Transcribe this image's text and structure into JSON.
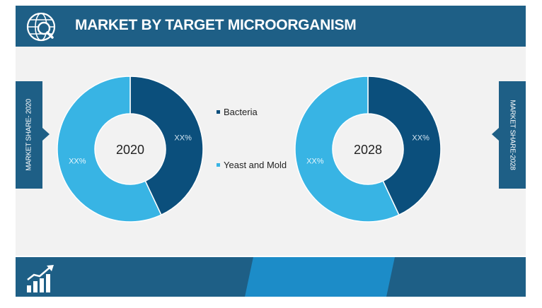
{
  "header": {
    "title": "MARKET BY  TARGET MICROORGANISM",
    "icon": "globe-search-icon"
  },
  "side_labels": {
    "left": "MARKET SHARE- 2020",
    "right": "MARKET SHARE-2028"
  },
  "footer": {
    "icon": "bar-chart-growth-icon"
  },
  "colors": {
    "bacteria": "#0b4f7c",
    "yeast": "#38b4e4",
    "header": "#1e5f86",
    "footer_accent": "#1c8cc8"
  },
  "chart_data": [
    {
      "type": "pie",
      "variant": "donut",
      "center_label": "2020",
      "categories": [
        "Bacteria",
        "Yeast and Mold"
      ],
      "values": [
        43,
        57
      ],
      "data_labels": [
        "XX%",
        "XX%"
      ]
    },
    {
      "type": "pie",
      "variant": "donut",
      "center_label": "2028",
      "categories": [
        "Bacteria",
        "Yeast and Mold"
      ],
      "values": [
        43,
        57
      ],
      "data_labels": [
        "XX%",
        "XX%"
      ]
    }
  ],
  "legend": {
    "items": [
      "Bacteria",
      "Yeast and Mold"
    ]
  }
}
